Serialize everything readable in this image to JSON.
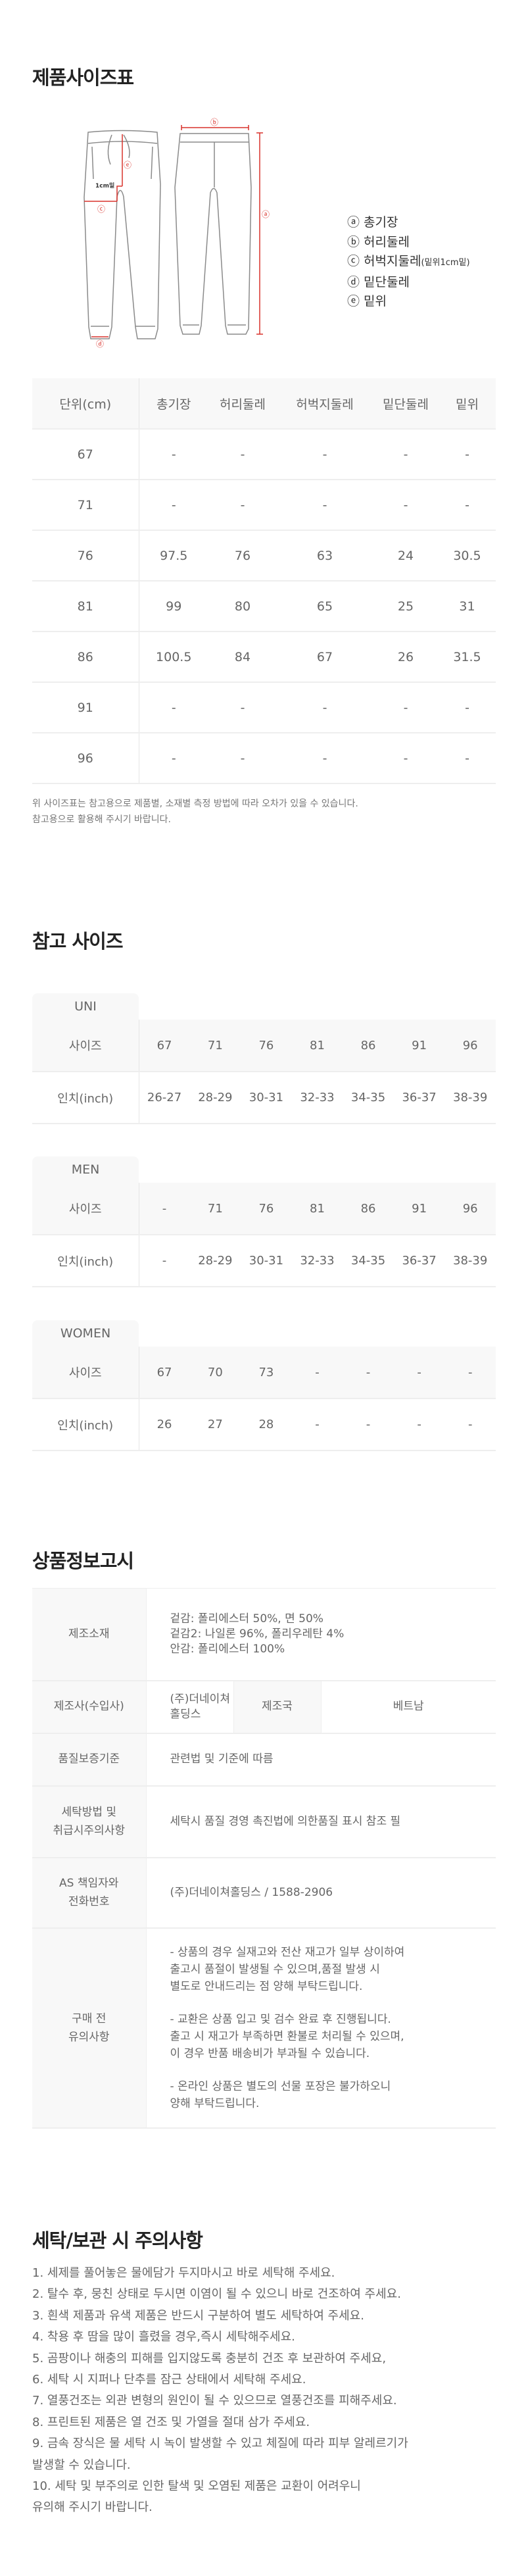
{
  "size_chart": {
    "title": "제품사이즈표",
    "diagram": {
      "markers": {
        "a": "ⓐ",
        "b": "ⓑ",
        "c": "ⓒ",
        "d": "ⓓ",
        "e": "ⓔ"
      },
      "crotch_note": "1cm밑",
      "line_color": "#d9322b"
    },
    "legend": [
      {
        "label": "ⓐ 총기장",
        "note": ""
      },
      {
        "label": "ⓑ 허리둘레",
        "note": ""
      },
      {
        "label": "ⓒ 허벅지둘레",
        "note": "(밑위1cm밑)"
      },
      {
        "label": "ⓓ 밑단둘레",
        "note": ""
      },
      {
        "label": "ⓔ 밑위",
        "note": ""
      }
    ],
    "headers": [
      "단위(cm)",
      "총기장",
      "허리둘레",
      "허벅지둘레",
      "밑단둘레",
      "밑위"
    ],
    "rows": [
      [
        "67",
        "-",
        "-",
        "-",
        "-",
        "-"
      ],
      [
        "71",
        "-",
        "-",
        "-",
        "-",
        "-"
      ],
      [
        "76",
        "97.5",
        "76",
        "63",
        "24",
        "30.5"
      ],
      [
        "81",
        "99",
        "80",
        "65",
        "25",
        "31"
      ],
      [
        "86",
        "100.5",
        "84",
        "67",
        "26",
        "31.5"
      ],
      [
        "91",
        "-",
        "-",
        "-",
        "-",
        "-"
      ],
      [
        "96",
        "-",
        "-",
        "-",
        "-",
        "-"
      ]
    ],
    "notes": [
      "위 사이즈표는 참고용으로 제품별, 소재별 측정 방법에 따라 오차가 있을 수 있습니다.",
      "참고용으로 활용해 주시기 바랍니다."
    ]
  },
  "reference": {
    "title": "참고 사이즈",
    "row_labels": {
      "size": "사이즈",
      "inch": "인치(inch)"
    },
    "groups": [
      {
        "name": "UNI",
        "sizes": [
          "67",
          "71",
          "76",
          "81",
          "86",
          "91",
          "96"
        ],
        "inches": [
          "26-27",
          "28-29",
          "30-31",
          "32-33",
          "34-35",
          "36-37",
          "38-39"
        ]
      },
      {
        "name": "MEN",
        "sizes": [
          "-",
          "71",
          "76",
          "81",
          "86",
          "91",
          "96"
        ],
        "inches": [
          "-",
          "28-29",
          "30-31",
          "32-33",
          "34-35",
          "36-37",
          "38-39"
        ]
      },
      {
        "name": "WOMEN",
        "sizes": [
          "67",
          "70",
          "73",
          "-",
          "-",
          "-",
          "-"
        ],
        "inches": [
          "26",
          "27",
          "28",
          "-",
          "-",
          "-",
          "-"
        ]
      }
    ]
  },
  "info": {
    "title": "상품정보고시",
    "material_label": "제조소재",
    "material": [
      "겉감: 폴리에스터 50%, 면 50%",
      "겉감2: 나일론 96%, 폴리우레탄 4%",
      "안감: 폴리에스터 100%"
    ],
    "maker_label": "제조사(수입사)",
    "maker": "(주)더네이쳐홀딩스",
    "country_label": "제조국",
    "country": "베트남",
    "quality_label": "품질보증기준",
    "quality": "관련법 및 기준에 따름",
    "wash_label": "세탁방법 및\n취급시주의사항",
    "wash": "세탁시 품질 경영 촉진법에 의한품질 표시 참조 필",
    "as_label": "AS 책임자와\n전화번호",
    "as": "(주)더네이쳐홀딩스 / 1588-2906",
    "notice_label": "구매 전\n유의사항",
    "notice": [
      "- 상품의 경우 실재고와 전산 재고가 일부 상이하여\n   출고시 품절이 발생될 수 있으며,품절 발생 시\n   별도로 안내드리는 점 양해 부탁드립니다.",
      "- 교환은 상품 입고 및 검수 완료 후 진행됩니다.\n   출고 시 재고가 부족하면 환불로 처리될 수 있으며,\n   이 경우 반품 배송비가 부과될 수 있습니다.",
      "- 온라인 상품은 별도의 선물 포장은 불가하오니\n  양해 부탁드립니다."
    ]
  },
  "care": {
    "title": "세탁/보관 시 주의사항",
    "items": [
      "1. 세제를 풀어놓은 물에담가 두지마시고 바로 세탁해 주세요.",
      "2. 탈수 후, 뭉친 상태로 두시면 이염이 될 수 있으니 바로 건조하여 주세요.",
      "3. 흰색 제품과 유색 제품은 반드시 구분하여 별도 세탁하여 주세요.",
      "4. 착용 후 땀을 많이 흘렸을 경우,즉시 세탁해주세요.",
      "5. 곰팡이나 해충의 피해를 입지않도록 충분히 건조 후 보관하여 주세요,",
      "6. 세탁 시 지퍼나 단추를 잠근 상태에서 세탁해 주세요.",
      "7. 열풍건조는 외관 변형의 원인이 될 수 있으므로 열풍건조를 피해주세요.",
      "8. 프린트된 제품은 열 건조 및 가열을 절대 삼가 주세요.",
      "9. 금속 장식은 물 세탁 시 녹이 발생할 수 있고 체질에 따라 피부 알레르기가\n    발생할 수 있습니다.",
      "10. 세탁 및 부주의로 인한 탈색 및 오염된 제품은 교환이 어려우니\n      유의해 주시기 바랍니다."
    ]
  }
}
